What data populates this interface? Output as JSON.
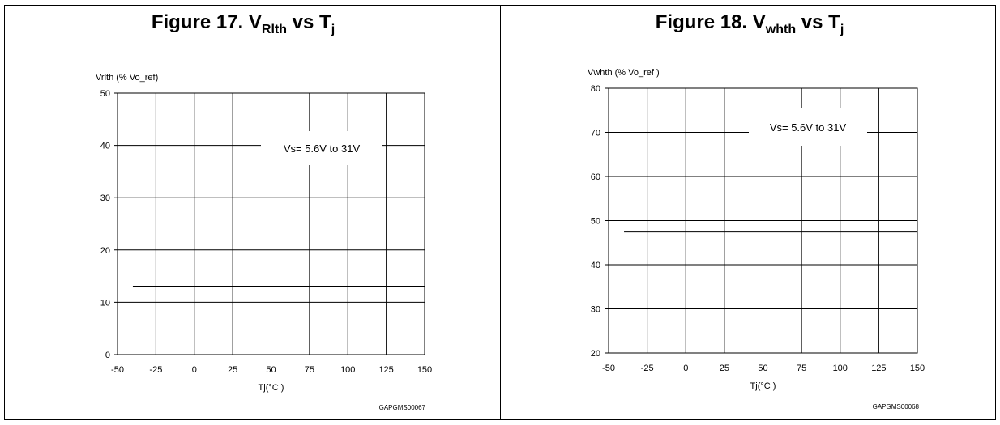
{
  "figures": [
    {
      "title_prefix": "Figure 17. V",
      "title_sub1": "Rlth",
      "title_mid": " vs T",
      "title_sub2": "j",
      "doc_code": "GAPGMS00067"
    },
    {
      "title_prefix": "Figure 18. V",
      "title_sub1": "whth",
      "title_mid": " vs T",
      "title_sub2": "j",
      "doc_code": "GAPGMS00068"
    }
  ],
  "chart_data": [
    {
      "type": "line",
      "title": "Figure 17. VRlth vs Tj",
      "xlabel": "Tj(°C )",
      "ylabel": "Vrlth (% Vo_ref)",
      "xlim": [
        -50,
        150
      ],
      "ylim": [
        0,
        50
      ],
      "xticks": [
        -50,
        -25,
        0,
        25,
        50,
        75,
        100,
        125,
        150
      ],
      "yticks": [
        0,
        10,
        20,
        30,
        40,
        50
      ],
      "grid": true,
      "annotation": "Vs= 5.6V to 31V",
      "series": [
        {
          "x": [
            -40,
            150
          ],
          "y": [
            13,
            13
          ]
        }
      ]
    },
    {
      "type": "line",
      "title": "Figure 18. Vwhth vs Tj",
      "xlabel": "Tj(°C )",
      "ylabel": "Vwhth (% Vo_ref )",
      "xlim": [
        -50,
        150
      ],
      "ylim": [
        20,
        80
      ],
      "xticks": [
        -50,
        -25,
        0,
        25,
        50,
        75,
        100,
        125,
        150
      ],
      "yticks": [
        20,
        30,
        40,
        50,
        60,
        70,
        80
      ],
      "grid": true,
      "annotation": "Vs= 5.6V to 31V",
      "series": [
        {
          "x": [
            -40,
            150
          ],
          "y": [
            47.5,
            47.5
          ]
        }
      ]
    }
  ]
}
